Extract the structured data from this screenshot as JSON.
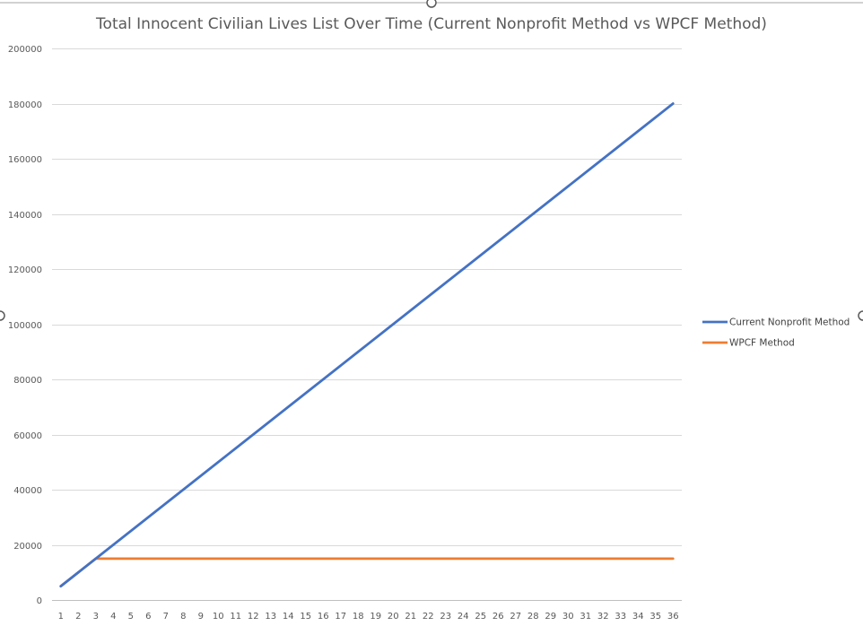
{
  "chart_data": {
    "type": "line",
    "title": "Total Innocent Civilian Lives List Over Time (Current Nonprofit Method vs WPCF Method)",
    "xlabel": "",
    "ylabel": "",
    "x": [
      1,
      2,
      3,
      4,
      5,
      6,
      7,
      8,
      9,
      10,
      11,
      12,
      13,
      14,
      15,
      16,
      17,
      18,
      19,
      20,
      21,
      22,
      23,
      24,
      25,
      26,
      27,
      28,
      29,
      30,
      31,
      32,
      33,
      34,
      35,
      36
    ],
    "ylim": [
      0,
      200000
    ],
    "yticks": [
      0,
      20000,
      40000,
      60000,
      80000,
      100000,
      120000,
      140000,
      160000,
      180000,
      200000
    ],
    "grid": "horizontal",
    "legend_position": "right",
    "series": [
      {
        "name": "Current Nonprofit Method",
        "color": "#4472c4",
        "values": [
          5000,
          10000,
          15000,
          20000,
          25000,
          30000,
          35000,
          40000,
          45000,
          50000,
          55000,
          60000,
          65000,
          70000,
          75000,
          80000,
          85000,
          90000,
          95000,
          100000,
          105000,
          110000,
          115000,
          120000,
          125000,
          130000,
          135000,
          140000,
          145000,
          150000,
          155000,
          160000,
          165000,
          170000,
          175000,
          180000
        ]
      },
      {
        "name": "WPCF Method",
        "color": "#ed7d31",
        "values": [
          5000,
          10000,
          15000,
          15000,
          15000,
          15000,
          15000,
          15000,
          15000,
          15000,
          15000,
          15000,
          15000,
          15000,
          15000,
          15000,
          15000,
          15000,
          15000,
          15000,
          15000,
          15000,
          15000,
          15000,
          15000,
          15000,
          15000,
          15000,
          15000,
          15000,
          15000,
          15000,
          15000,
          15000,
          15000,
          15000
        ]
      }
    ]
  },
  "colors": {
    "gridline": "#d9d9d9",
    "axis_line": "#bfbfbf",
    "selection_handle": "#595959"
  }
}
